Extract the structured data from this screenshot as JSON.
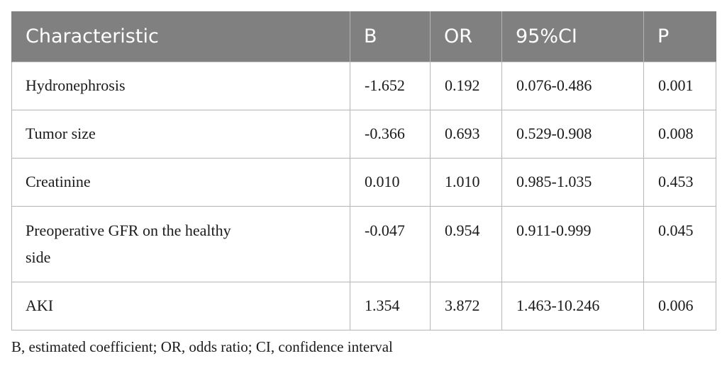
{
  "table": {
    "headers": [
      "Characteristic",
      "B",
      "OR",
      "95%CI",
      "P"
    ],
    "rows": [
      {
        "characteristic": "Hydronephrosis",
        "b": "-1.652",
        "or": "0.192",
        "ci": "0.076-0.486",
        "p": "0.001"
      },
      {
        "characteristic": "Tumor size",
        "b": "-0.366",
        "or": "0.693",
        "ci": "0.529-0.908",
        "p": "0.008"
      },
      {
        "characteristic": "Creatinine",
        "b": "0.010",
        "or": "1.010",
        "ci": "0.985-1.035",
        "p": "0.453"
      },
      {
        "characteristic": "Preoperative GFR on the healthy side",
        "b": "-0.047",
        "or": "0.954",
        "ci": "0.911-0.999",
        "p": "0.045"
      },
      {
        "characteristic": "AKI",
        "b": "1.354",
        "or": "3.872",
        "ci": "1.463-10.246",
        "p": "0.006"
      }
    ]
  },
  "footnote": "B, estimated coefficient; OR, odds ratio; CI, confidence interval",
  "colors": {
    "header_bg": "#808080",
    "header_text": "#ffffff",
    "grid": "#b5b5b5"
  }
}
